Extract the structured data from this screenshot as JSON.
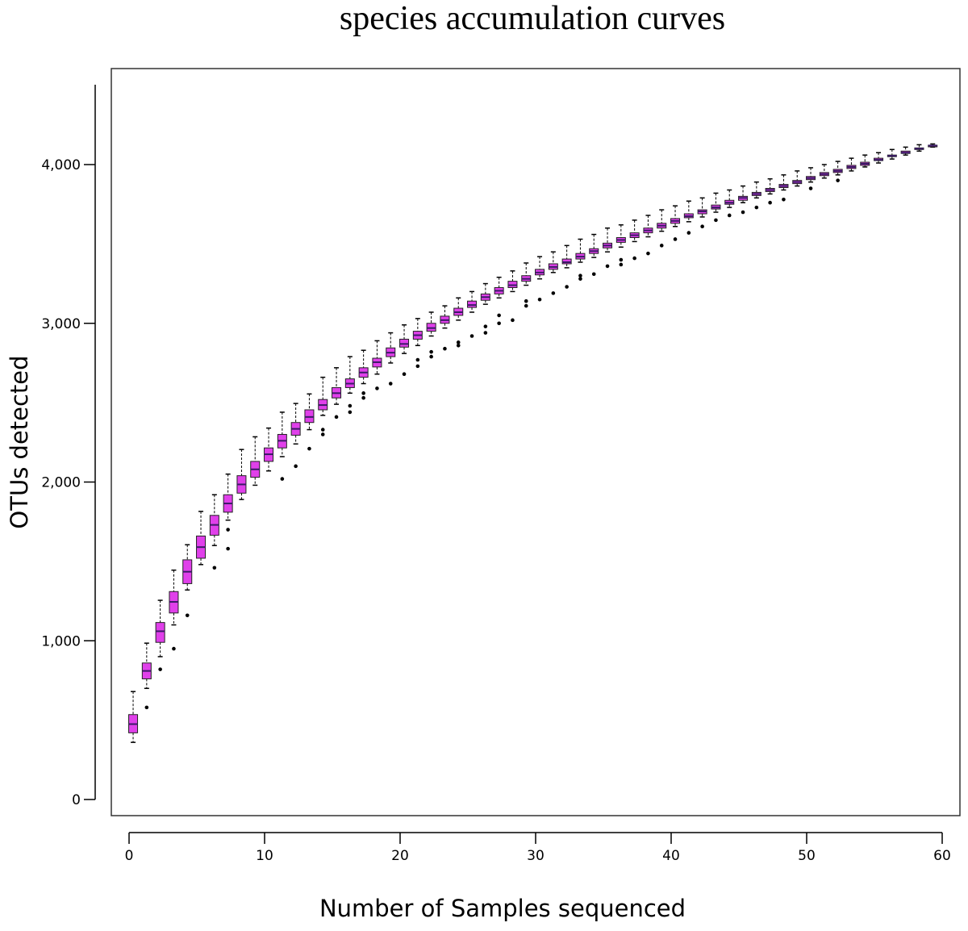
{
  "chart_data": {
    "type": "box",
    "title": "species accumulation curves",
    "xlabel": "Number of Samples sequenced",
    "ylabel": "OTUs detected",
    "xlim": [
      0,
      60
    ],
    "ylim": [
      0,
      4500
    ],
    "xticks": [
      0,
      10,
      20,
      30,
      40,
      50,
      60
    ],
    "xtick_labels": [
      "0",
      "10",
      "20",
      "30",
      "40",
      "50",
      "60"
    ],
    "yticks": [
      0,
      1000,
      2000,
      3000,
      4000
    ],
    "ytick_labels": [
      "0",
      "1,000",
      "2,000",
      "3,000",
      "4,000"
    ],
    "grid": false,
    "box_color": "#e040ea",
    "median_color": "#3a1a66",
    "x": [
      1,
      2,
      3,
      4,
      5,
      6,
      7,
      8,
      9,
      10,
      11,
      12,
      13,
      14,
      15,
      16,
      17,
      18,
      19,
      20,
      21,
      22,
      23,
      24,
      25,
      26,
      27,
      28,
      29,
      30,
      31,
      32,
      33,
      34,
      35,
      36,
      37,
      38,
      39,
      40,
      41,
      42,
      43,
      44,
      45,
      46,
      47,
      48,
      49,
      50,
      51,
      52,
      53,
      54,
      55,
      56,
      57,
      58,
      59,
      60
    ],
    "median": [
      475,
      810,
      1060,
      1245,
      1435,
      1590,
      1730,
      1865,
      1985,
      2080,
      2175,
      2260,
      2335,
      2410,
      2485,
      2560,
      2620,
      2690,
      2755,
      2815,
      2870,
      2925,
      2970,
      3020,
      3070,
      3115,
      3165,
      3205,
      3240,
      3280,
      3320,
      3355,
      3385,
      3420,
      3455,
      3490,
      3525,
      3555,
      3585,
      3615,
      3645,
      3675,
      3705,
      3730,
      3760,
      3790,
      3815,
      3840,
      3865,
      3890,
      3915,
      3940,
      3960,
      3985,
      4005,
      4030,
      4055,
      4075,
      4100,
      4120
    ],
    "q1": [
      420,
      760,
      990,
      1175,
      1360,
      1520,
      1665,
      1810,
      1930,
      2030,
      2130,
      2215,
      2295,
      2375,
      2455,
      2530,
      2595,
      2660,
      2725,
      2790,
      2850,
      2900,
      2950,
      3000,
      3050,
      3100,
      3145,
      3185,
      3225,
      3265,
      3305,
      3340,
      3375,
      3405,
      3440,
      3475,
      3510,
      3540,
      3570,
      3600,
      3630,
      3665,
      3690,
      3720,
      3750,
      3775,
      3805,
      3830,
      3855,
      3880,
      3905,
      3930,
      3950,
      3975,
      3995,
      4025,
      4050,
      4070,
      4095,
      4118
    ],
    "q3": [
      535,
      860,
      1115,
      1310,
      1510,
      1660,
      1790,
      1920,
      2040,
      2130,
      2215,
      2300,
      2375,
      2455,
      2520,
      2595,
      2650,
      2720,
      2780,
      2845,
      2900,
      2950,
      3000,
      3045,
      3095,
      3140,
      3185,
      3225,
      3265,
      3300,
      3340,
      3375,
      3405,
      3440,
      3470,
      3505,
      3540,
      3570,
      3600,
      3630,
      3660,
      3690,
      3715,
      3745,
      3775,
      3800,
      3825,
      3850,
      3875,
      3900,
      3925,
      3950,
      3970,
      3995,
      4015,
      4040,
      4060,
      4085,
      4105,
      4122
    ],
    "whisker_low": [
      360,
      700,
      900,
      1100,
      1320,
      1480,
      1600,
      1760,
      1890,
      1980,
      2070,
      2160,
      2240,
      2330,
      2420,
      2490,
      2560,
      2620,
      2680,
      2750,
      2810,
      2860,
      2920,
      2970,
      3020,
      3070,
      3120,
      3160,
      3200,
      3240,
      3280,
      3320,
      3350,
      3385,
      3415,
      3450,
      3480,
      3515,
      3545,
      3580,
      3610,
      3640,
      3670,
      3700,
      3730,
      3760,
      3790,
      3815,
      3840,
      3865,
      3890,
      3915,
      3935,
      3960,
      3985,
      4010,
      4035,
      4060,
      4085,
      4110
    ],
    "whisker_high": [
      680,
      985,
      1255,
      1445,
      1605,
      1815,
      1920,
      2050,
      2205,
      2285,
      2340,
      2440,
      2495,
      2555,
      2660,
      2720,
      2790,
      2830,
      2890,
      2940,
      2990,
      3030,
      3070,
      3110,
      3160,
      3200,
      3250,
      3290,
      3330,
      3380,
      3420,
      3450,
      3490,
      3530,
      3560,
      3600,
      3620,
      3650,
      3680,
      3715,
      3740,
      3770,
      3790,
      3820,
      3840,
      3865,
      3890,
      3910,
      3935,
      3960,
      3980,
      4000,
      4020,
      4040,
      4060,
      4075,
      4095,
      4110,
      4125,
      4130
    ],
    "outliers": [
      {
        "x": 2,
        "y": 580
      },
      {
        "x": 3,
        "y": 820
      },
      {
        "x": 4,
        "y": 950
      },
      {
        "x": 5,
        "y": 1160
      },
      {
        "x": 7,
        "y": 1460
      },
      {
        "x": 8,
        "y": 1580
      },
      {
        "x": 8,
        "y": 1700
      },
      {
        "x": 12,
        "y": 2020
      },
      {
        "x": 13,
        "y": 2100
      },
      {
        "x": 14,
        "y": 2210
      },
      {
        "x": 15,
        "y": 2300
      },
      {
        "x": 15,
        "y": 2330
      },
      {
        "x": 16,
        "y": 2410
      },
      {
        "x": 17,
        "y": 2440
      },
      {
        "x": 17,
        "y": 2480
      },
      {
        "x": 18,
        "y": 2530
      },
      {
        "x": 18,
        "y": 2560
      },
      {
        "x": 19,
        "y": 2590
      },
      {
        "x": 20,
        "y": 2620
      },
      {
        "x": 21,
        "y": 2680
      },
      {
        "x": 22,
        "y": 2730
      },
      {
        "x": 22,
        "y": 2770
      },
      {
        "x": 23,
        "y": 2790
      },
      {
        "x": 23,
        "y": 2820
      },
      {
        "x": 24,
        "y": 2840
      },
      {
        "x": 25,
        "y": 2860
      },
      {
        "x": 25,
        "y": 2880
      },
      {
        "x": 26,
        "y": 2920
      },
      {
        "x": 27,
        "y": 2940
      },
      {
        "x": 27,
        "y": 2980
      },
      {
        "x": 28,
        "y": 3000
      },
      {
        "x": 28,
        "y": 3050
      },
      {
        "x": 29,
        "y": 3020
      },
      {
        "x": 30,
        "y": 3110
      },
      {
        "x": 30,
        "y": 3140
      },
      {
        "x": 31,
        "y": 3150
      },
      {
        "x": 32,
        "y": 3190
      },
      {
        "x": 33,
        "y": 3230
      },
      {
        "x": 34,
        "y": 3280
      },
      {
        "x": 34,
        "y": 3300
      },
      {
        "x": 35,
        "y": 3310
      },
      {
        "x": 36,
        "y": 3360
      },
      {
        "x": 37,
        "y": 3370
      },
      {
        "x": 37,
        "y": 3400
      },
      {
        "x": 38,
        "y": 3410
      },
      {
        "x": 39,
        "y": 3440
      },
      {
        "x": 40,
        "y": 3490
      },
      {
        "x": 41,
        "y": 3530
      },
      {
        "x": 42,
        "y": 3570
      },
      {
        "x": 43,
        "y": 3610
      },
      {
        "x": 44,
        "y": 3650
      },
      {
        "x": 45,
        "y": 3680
      },
      {
        "x": 46,
        "y": 3700
      },
      {
        "x": 47,
        "y": 3730
      },
      {
        "x": 48,
        "y": 3760
      },
      {
        "x": 49,
        "y": 3780
      },
      {
        "x": 51,
        "y": 3850
      },
      {
        "x": 53,
        "y": 3900
      }
    ]
  }
}
